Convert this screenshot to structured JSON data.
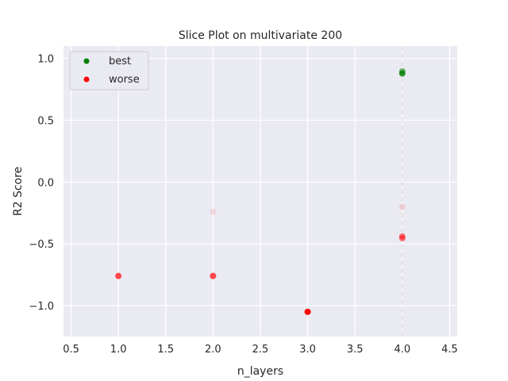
{
  "chart_data": {
    "type": "scatter",
    "title": "Slice Plot on multivariate 200",
    "xlabel": "n_layers",
    "ylabel": "R2 Score",
    "xlim": [
      0.42,
      4.58
    ],
    "ylim": [
      -1.25,
      1.1
    ],
    "xticks": [
      0.5,
      1.0,
      1.5,
      2.0,
      2.5,
      3.0,
      3.5,
      4.0,
      4.5
    ],
    "xtick_labels": [
      "0.5",
      "1.0",
      "1.5",
      "2.0",
      "2.5",
      "3.0",
      "3.5",
      "4.0",
      "4.5"
    ],
    "yticks": [
      1.0,
      0.5,
      0.0,
      -0.5,
      -1.0
    ],
    "ytick_labels": [
      "1.0",
      "0.5",
      "0.0",
      "−0.5",
      "−1.0"
    ],
    "grid": true,
    "legend_position": "top-left",
    "best_x_line": 4.0,
    "colors": {
      "background": "#eaeaf2",
      "grid": "#ffffff",
      "best": "#008000",
      "worse": "#ff0000",
      "best_line": "#dddddd"
    },
    "series": [
      {
        "name": "best",
        "points": [
          {
            "x": 4.0,
            "y": 0.895,
            "alpha": 0.55
          },
          {
            "x": 4.0,
            "y": 0.878,
            "alpha": 0.8
          }
        ]
      },
      {
        "name": "worse",
        "points": [
          {
            "x": 1.0,
            "y": -0.76,
            "alpha": 0.7
          },
          {
            "x": 2.0,
            "y": -0.76,
            "alpha": 0.7
          },
          {
            "x": 2.0,
            "y": -0.24,
            "alpha": 0.1
          },
          {
            "x": 3.0,
            "y": -1.05,
            "alpha": 1.0
          },
          {
            "x": 4.0,
            "y": -0.2,
            "alpha": 0.12
          },
          {
            "x": 4.0,
            "y": -0.44,
            "alpha": 0.5
          },
          {
            "x": 4.0,
            "y": -0.455,
            "alpha": 0.5
          }
        ]
      }
    ]
  }
}
